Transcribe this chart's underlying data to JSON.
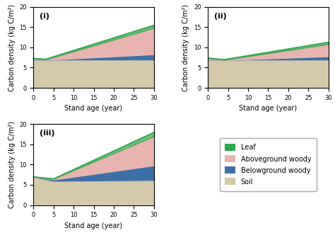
{
  "subplots": [
    {
      "label": "(i)",
      "soil": {
        "start": 7.0,
        "end": 7.0
      },
      "belowground": {
        "start": 7.0,
        "end": 8.3
      },
      "aboveground": {
        "start": 7.2,
        "end": 14.8
      },
      "leaf": {
        "start": 7.3,
        "end": 15.5
      }
    },
    {
      "label": "(ii)",
      "soil": {
        "start": 7.0,
        "end": 7.0
      },
      "belowground": {
        "start": 7.0,
        "end": 7.8
      },
      "aboveground": {
        "start": 7.3,
        "end": 10.8
      },
      "leaf": {
        "start": 7.4,
        "end": 11.3
      }
    },
    {
      "label": "(iii)",
      "soil": {
        "start": 7.0,
        "end": 6.2
      },
      "belowground": {
        "start": 7.0,
        "end": 9.8
      },
      "aboveground": {
        "start": 7.0,
        "end": 17.0
      },
      "leaf": {
        "start": 7.0,
        "end": 18.0
      }
    }
  ],
  "dip_age": 5,
  "color_soil": "#d4c9a8",
  "color_belowground": "#3d6fa8",
  "color_aboveground": "#e8b4b0",
  "color_leaf": "#2da84a",
  "xlabel": "Stand age (year)",
  "ylabel": "Carbon density (kg C/m²)",
  "xlim": [
    0,
    30
  ],
  "ylim": [
    0,
    20
  ],
  "xticks": [
    0,
    5,
    10,
    15,
    20,
    25,
    30
  ],
  "yticks": [
    0,
    5,
    10,
    15,
    20
  ],
  "legend_labels": [
    "Leaf",
    "Aboveground woody",
    "Belowground woody",
    "Soil"
  ],
  "legend_colors": [
    "#2da84a",
    "#e8b4b0",
    "#3d6fa8",
    "#d4c9a8"
  ]
}
